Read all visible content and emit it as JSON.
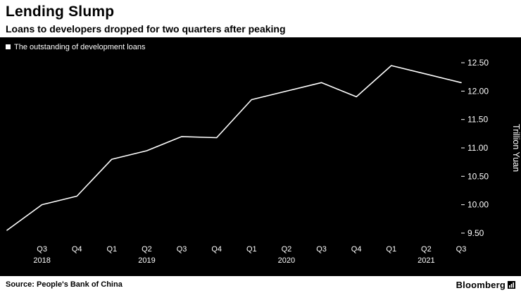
{
  "header": {
    "title": "Lending Slump",
    "subtitle": "Loans to developers dropped for two quarters after peaking"
  },
  "legend": {
    "label": "The outstanding of development loans"
  },
  "chart_data": {
    "type": "line",
    "title": "Lending Slump",
    "x": [
      "Q2 2018",
      "Q3 2018",
      "Q4 2018",
      "Q1 2019",
      "Q2 2019",
      "Q3 2019",
      "Q4 2019",
      "Q1 2020",
      "Q2 2020",
      "Q3 2020",
      "Q4 2020",
      "Q1 2021",
      "Q2 2021",
      "Q3 2021"
    ],
    "values": [
      9.55,
      10.0,
      10.15,
      10.8,
      10.95,
      11.2,
      11.18,
      11.85,
      12.0,
      12.15,
      11.9,
      12.45,
      12.3,
      12.15
    ],
    "xtick_labels": [
      "Q3",
      "Q4",
      "Q1",
      "Q2",
      "Q3",
      "Q4",
      "Q1",
      "Q2",
      "Q3",
      "Q4",
      "Q1",
      "Q2",
      "Q3"
    ],
    "year_labels": [
      {
        "label": "2018",
        "tick_index": 0
      },
      {
        "label": "2019",
        "tick_index": 3
      },
      {
        "label": "2020",
        "tick_index": 7
      },
      {
        "label": "2021",
        "tick_index": 11
      }
    ],
    "ylabel": "Trillion Yuan",
    "ylim": [
      9.4,
      12.6
    ],
    "yticks": [
      9.5,
      10.0,
      10.5,
      11.0,
      11.5,
      12.0,
      12.5
    ],
    "legend_position": "top-left",
    "grid": false,
    "line_color": "#ffffff",
    "background_color": "#000000",
    "text_color": "#ffffff"
  },
  "footer": {
    "source": "Source: People's Bank of China",
    "brand": "Bloomberg"
  }
}
